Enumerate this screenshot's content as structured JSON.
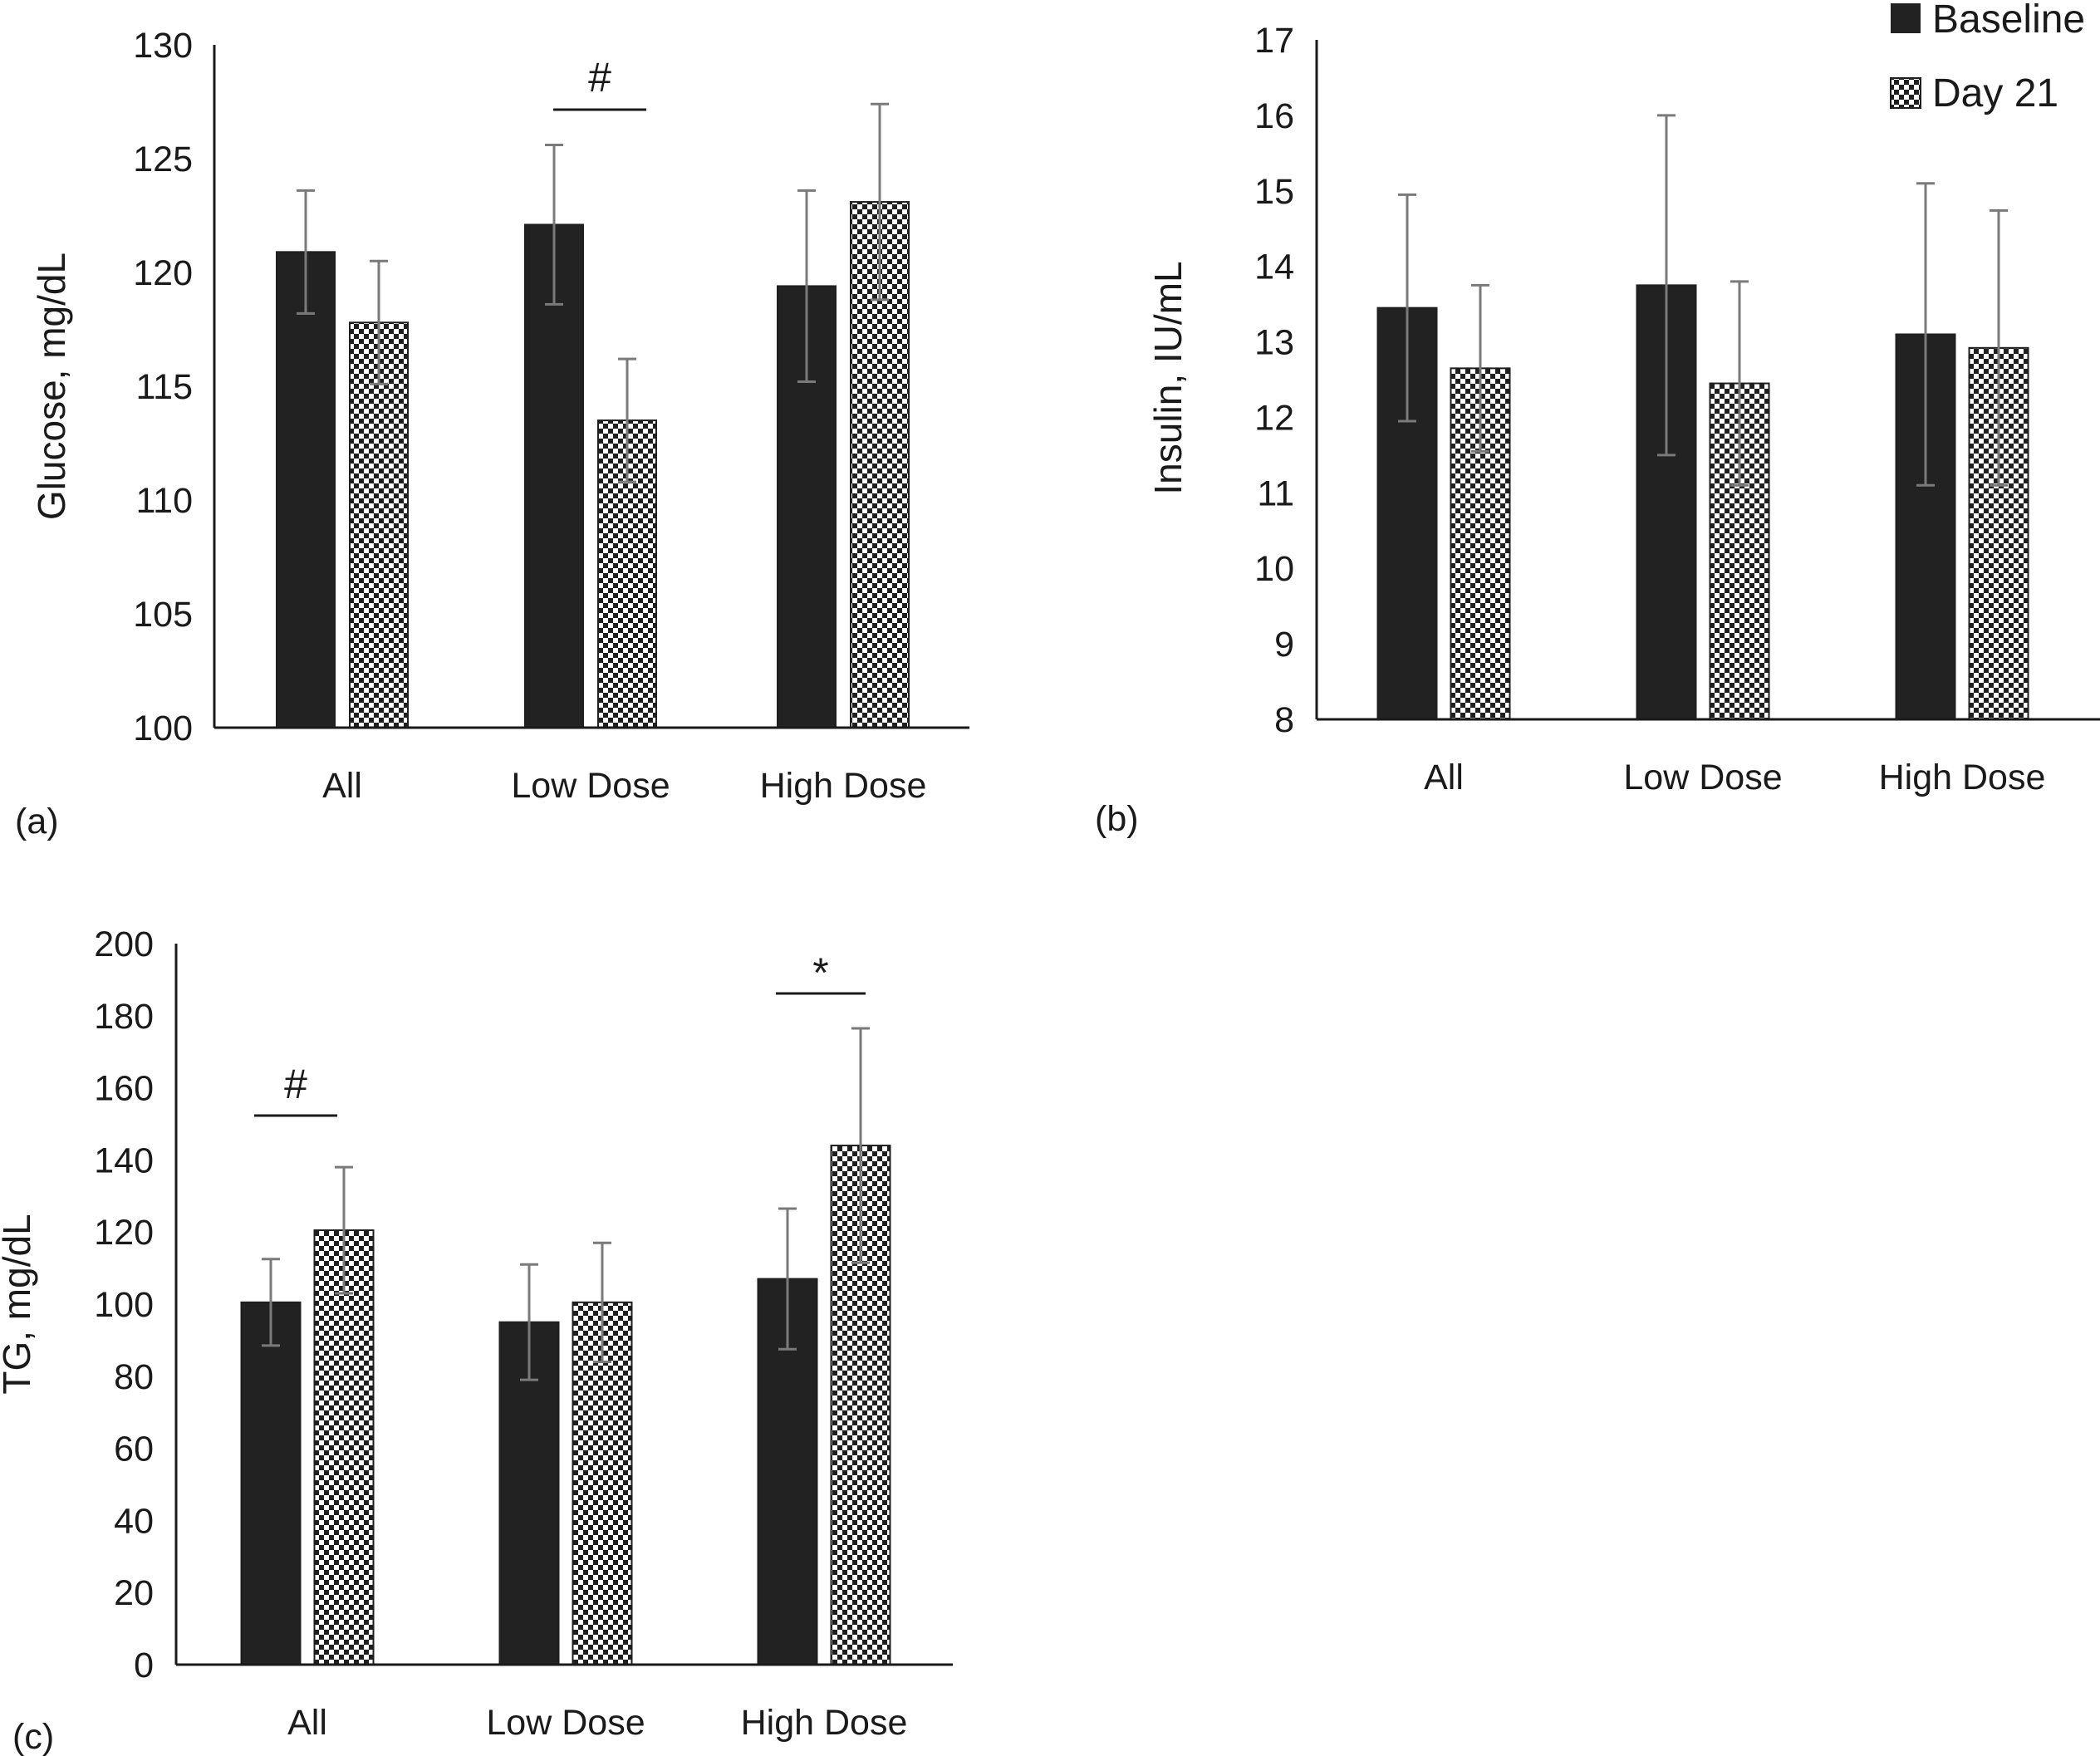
{
  "colors": {
    "baseline": "#222222",
    "day21_pattern": "#1f1f1f",
    "error_bar": "#7a7a7a",
    "axis": "#1a1a1a"
  },
  "legend": {
    "placement": "top-right",
    "entries": [
      {
        "label": "Baseline",
        "style": "solid"
      },
      {
        "label": "Day 21",
        "style": "checker"
      }
    ]
  },
  "chart_data": [
    {
      "panel": "(a)",
      "type": "bar",
      "ylabel": "Glucose, mg/dL",
      "ylim": [
        100,
        130
      ],
      "ytick_step": 5,
      "categories": [
        "All",
        "Low Dose",
        "High Dose"
      ],
      "series": [
        {
          "name": "Baseline",
          "values": [
            120.9,
            122.1,
            119.4
          ],
          "errors": [
            2.7,
            3.5,
            4.2
          ]
        },
        {
          "name": "Day 21",
          "values": [
            117.8,
            113.5,
            123.1
          ],
          "errors": [
            2.7,
            2.7,
            4.3
          ]
        }
      ],
      "annotations": [
        {
          "text": "#",
          "category": "Low Dose"
        }
      ]
    },
    {
      "panel": "(b)",
      "type": "bar",
      "ylabel": "Insulin, IU/mL",
      "ylim": [
        8,
        17
      ],
      "ytick_step": 1,
      "categories": [
        "All",
        "Low Dose",
        "High Dose"
      ],
      "series": [
        {
          "name": "Baseline",
          "values": [
            13.45,
            13.75,
            13.1
          ],
          "errors": [
            1.5,
            2.25,
            2.0
          ]
        },
        {
          "name": "Day 21",
          "values": [
            12.65,
            12.45,
            12.92
          ],
          "errors": [
            1.1,
            1.35,
            1.82
          ]
        }
      ],
      "annotations": []
    },
    {
      "panel": "(c)",
      "type": "bar",
      "ylabel": "TG, mg/dL",
      "ylim": [
        0,
        200
      ],
      "ytick_step": 20,
      "categories": [
        "All",
        "Low Dose",
        "High Dose"
      ],
      "series": [
        {
          "name": "Baseline",
          "values": [
            100.5,
            95,
            107
          ],
          "errors": [
            12,
            16,
            19.5
          ]
        },
        {
          "name": "Day 21",
          "values": [
            120.5,
            100.5,
            144
          ],
          "errors": [
            17.5,
            16.5,
            32.5
          ]
        }
      ],
      "annotations": [
        {
          "text": "#",
          "category": "All"
        },
        {
          "text": "*",
          "category": "High Dose"
        }
      ]
    }
  ]
}
